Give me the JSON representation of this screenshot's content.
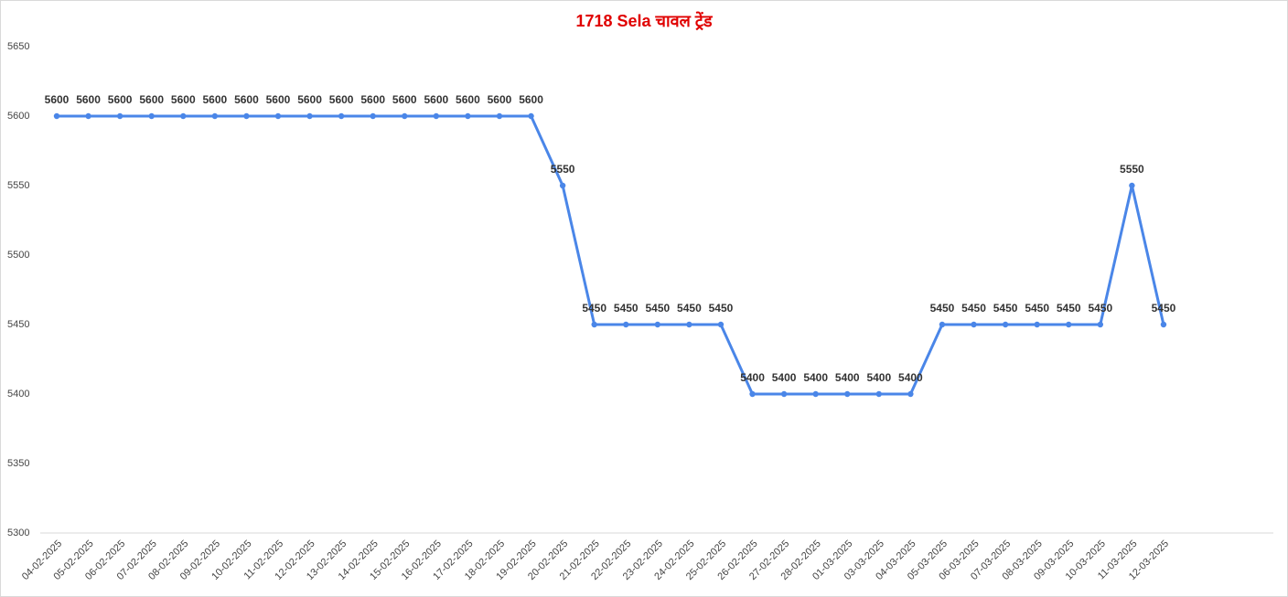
{
  "chart_data": {
    "type": "line",
    "title": "1718 Sela चावल ट्रेंड",
    "categories": [
      "04-02-2025",
      "05-02-2025",
      "06-02-2025",
      "07-02-2025",
      "08-02-2025",
      "09-02-2025",
      "10-02-2025",
      "11-02-2025",
      "12-02-2025",
      "13-02-2025",
      "14-02-2025",
      "15-02-2025",
      "16-02-2025",
      "17-02-2025",
      "18-02-2025",
      "19-02-2025",
      "20-02-2025",
      "21-02-2025",
      "22-02-2025",
      "23-02-2025",
      "24-02-2025",
      "25-02-2025",
      "26-02-2025",
      "27-02-2025",
      "28-02-2025",
      "01-03-2025",
      "03-03-2025",
      "04-03-2025",
      "05-03-2025",
      "06-03-2025",
      "07-03-2025",
      "08-03-2025",
      "09-03-2025",
      "10-03-2025",
      "11-03-2025",
      "12-03-2025"
    ],
    "values": [
      5600,
      5600,
      5600,
      5600,
      5600,
      5600,
      5600,
      5600,
      5600,
      5600,
      5600,
      5600,
      5600,
      5600,
      5600,
      5600,
      5550,
      5450,
      5450,
      5450,
      5450,
      5450,
      5400,
      5400,
      5400,
      5400,
      5400,
      5400,
      5450,
      5450,
      5450,
      5450,
      5450,
      5450,
      5550,
      5450
    ],
    "color": "#4a86e8",
    "ylim": [
      5300,
      5650
    ],
    "yticks": [
      5300,
      5350,
      5400,
      5450,
      5500,
      5550,
      5600,
      5650
    ],
    "grid": false,
    "data_labels": true
  }
}
